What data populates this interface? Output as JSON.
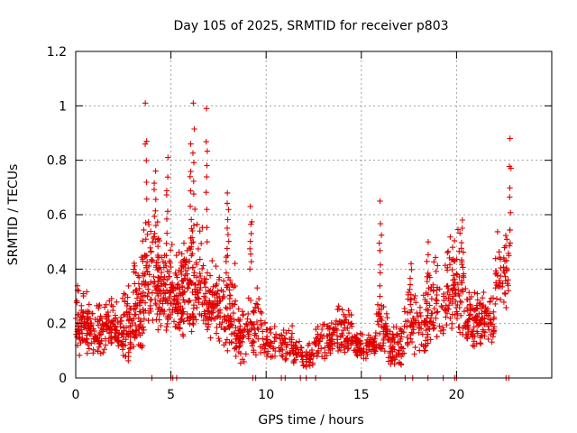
{
  "chart_data": {
    "type": "scatter",
    "title": "Day 105 of 2025, SRMTID for receiver p803",
    "xlabel": "GPS time / hours",
    "ylabel": "SRMTID / TECUs",
    "xlim": [
      0,
      25
    ],
    "ylim": [
      0,
      1.2
    ],
    "xticks": [
      0,
      5,
      10,
      15,
      20
    ],
    "yticks": [
      0,
      0.2,
      0.4,
      0.6,
      0.8,
      1,
      1.2
    ],
    "grid": true,
    "marker": "+",
    "color": "#e00000",
    "series": [
      {
        "name": "SRMTID",
        "clusters": [
          {
            "x": [
              0.0,
              0.6
            ],
            "y": [
              0.08,
              0.35
            ],
            "n": 60
          },
          {
            "x": [
              0.6,
              1.6
            ],
            "y": [
              0.08,
              0.3
            ],
            "n": 90
          },
          {
            "x": [
              1.6,
              2.4
            ],
            "y": [
              0.1,
              0.3
            ],
            "n": 70
          },
          {
            "x": [
              2.4,
              3.0
            ],
            "y": [
              0.05,
              0.38
            ],
            "n": 60
          },
          {
            "x": [
              3.0,
              3.6
            ],
            "y": [
              0.1,
              0.48
            ],
            "n": 70
          },
          {
            "x": [
              3.5,
              4.4
            ],
            "y": [
              0.15,
              0.62
            ],
            "n": 90
          },
          {
            "x": [
              4.3,
              5.2
            ],
            "y": [
              0.15,
              0.55
            ],
            "n": 90
          },
          {
            "x": [
              5.2,
              5.8
            ],
            "y": [
              0.15,
              0.52
            ],
            "n": 80
          },
          {
            "x": [
              5.8,
              6.8
            ],
            "y": [
              0.15,
              0.6
            ],
            "n": 100
          },
          {
            "x": [
              6.8,
              7.6
            ],
            "y": [
              0.12,
              0.45
            ],
            "n": 80
          },
          {
            "x": [
              7.6,
              8.4
            ],
            "y": [
              0.08,
              0.45
            ],
            "n": 70
          },
          {
            "x": [
              8.4,
              9.0
            ],
            "y": [
              0.05,
              0.3
            ],
            "n": 50
          },
          {
            "x": [
              9.0,
              9.8
            ],
            "y": [
              0.08,
              0.35
            ],
            "n": 50
          },
          {
            "x": [
              9.8,
              11.4
            ],
            "y": [
              0.06,
              0.22
            ],
            "n": 80
          },
          {
            "x": [
              11.4,
              12.5
            ],
            "y": [
              0.04,
              0.14
            ],
            "n": 60
          },
          {
            "x": [
              12.5,
              13.6
            ],
            "y": [
              0.07,
              0.22
            ],
            "n": 70
          },
          {
            "x": [
              13.6,
              14.6
            ],
            "y": [
              0.08,
              0.28
            ],
            "n": 70
          },
          {
            "x": [
              14.6,
              15.8
            ],
            "y": [
              0.07,
              0.18
            ],
            "n": 80
          },
          {
            "x": [
              15.8,
              16.4
            ],
            "y": [
              0.08,
              0.35
            ],
            "n": 50
          },
          {
            "x": [
              16.4,
              17.2
            ],
            "y": [
              0.04,
              0.2
            ],
            "n": 60
          },
          {
            "x": [
              17.2,
              18.4
            ],
            "y": [
              0.08,
              0.35
            ],
            "n": 70
          },
          {
            "x": [
              18.4,
              19.5
            ],
            "y": [
              0.12,
              0.45
            ],
            "n": 70
          },
          {
            "x": [
              19.5,
              20.4
            ],
            "y": [
              0.15,
              0.55
            ],
            "n": 70
          },
          {
            "x": [
              20.4,
              21.2
            ],
            "y": [
              0.1,
              0.35
            ],
            "n": 70
          },
          {
            "x": [
              21.2,
              22.0
            ],
            "y": [
              0.12,
              0.32
            ],
            "n": 60
          },
          {
            "x": [
              22.0,
              22.8
            ],
            "y": [
              0.25,
              0.55
            ],
            "n": 50
          }
        ],
        "spikes": [
          {
            "x": 3.7,
            "y": [
              0.45,
              1.01
            ]
          },
          {
            "x": 4.15,
            "y": [
              0.5,
              0.76
            ]
          },
          {
            "x": 4.8,
            "y": [
              0.45,
              0.81
            ]
          },
          {
            "x": 6.05,
            "y": [
              0.45,
              0.86
            ]
          },
          {
            "x": 6.2,
            "y": [
              0.5,
              1.01
            ]
          },
          {
            "x": 6.9,
            "y": [
              0.5,
              0.99
            ]
          },
          {
            "x": 8.0,
            "y": [
              0.45,
              0.68
            ]
          },
          {
            "x": 9.2,
            "y": [
              0.4,
              0.63
            ]
          },
          {
            "x": 16.0,
            "y": [
              0.3,
              0.65
            ]
          },
          {
            "x": 17.6,
            "y": [
              0.25,
              0.42
            ]
          },
          {
            "x": 18.5,
            "y": [
              0.25,
              0.5
            ]
          },
          {
            "x": 19.8,
            "y": [
              0.3,
              0.48
            ]
          },
          {
            "x": 20.3,
            "y": [
              0.35,
              0.58
            ]
          },
          {
            "x": 22.8,
            "y": [
              0.45,
              0.88
            ]
          }
        ],
        "zero_points": [
          4.0,
          5.0,
          5.1,
          5.3,
          9.3,
          9.45,
          10.8,
          11.0,
          11.8,
          12.1,
          12.6,
          16.0,
          17.3,
          17.7,
          18.5,
          19.3,
          19.9,
          20.0,
          22.6,
          22.75
        ]
      }
    ]
  }
}
